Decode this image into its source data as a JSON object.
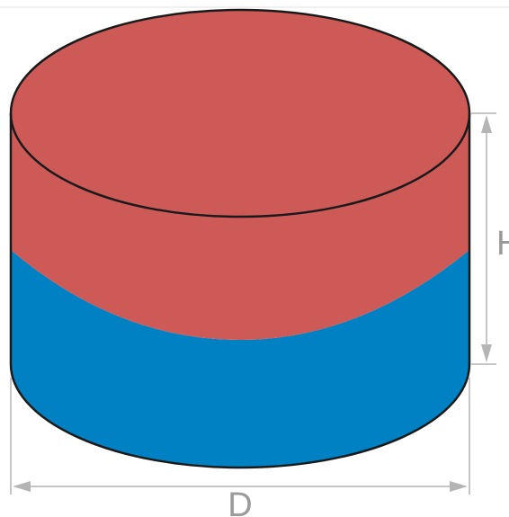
{
  "diagram": {
    "labels": {
      "height": "H",
      "diameter": "D"
    },
    "colors": {
      "top_pole": "#cd5a57",
      "bottom_pole": "#0081c4",
      "outline": "#1a1a1a",
      "dimension": "#b4b4b4",
      "label": "#9a9a9a"
    }
  }
}
